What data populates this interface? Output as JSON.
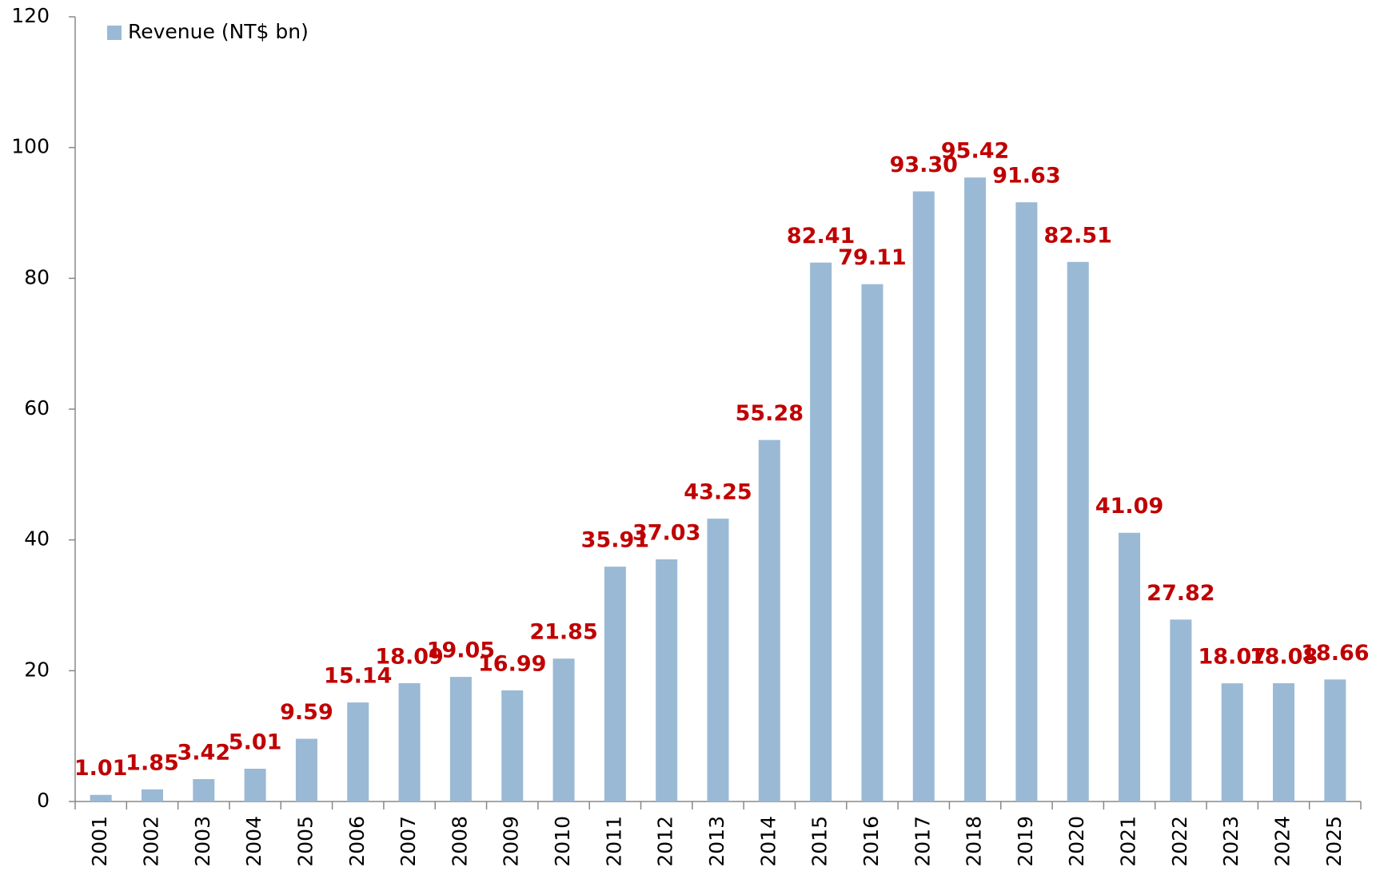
{
  "chart_data": {
    "type": "bar",
    "categories": [
      "2001",
      "2002",
      "2003",
      "2004",
      "2005",
      "2006",
      "2007",
      "2008",
      "2009",
      "2010",
      "2011",
      "2012",
      "2013",
      "2014",
      "2015",
      "2016",
      "2017",
      "2018",
      "2019",
      "2020",
      "2021",
      "2022",
      "2023",
      "2024",
      "2025"
    ],
    "series": [
      {
        "name": "Revenue (NT$ bn)",
        "color": "#9ab9d5",
        "values": [
          1.01,
          1.85,
          3.42,
          5.01,
          9.59,
          15.14,
          18.09,
          19.05,
          16.99,
          21.85,
          35.91,
          37.03,
          43.25,
          55.28,
          82.41,
          79.11,
          93.3,
          95.42,
          91.63,
          82.51,
          41.09,
          27.82,
          18.07,
          18.08,
          18.66
        ],
        "value_labels": [
          "1.01",
          "1.85",
          "3.42",
          "5.01",
          "9.59",
          "15.14",
          "18.09",
          "19.05",
          "16.99",
          "21.85",
          "35.91",
          "37.03",
          "43.25",
          "55.28",
          "82.41",
          "79.11",
          "93.30",
          "95.42",
          "91.63",
          "82.51",
          "41.09",
          "27.82",
          "18.07",
          "18.08",
          "18.66"
        ],
        "label_color": "#c00000"
      }
    ],
    "ylim": [
      0,
      120
    ],
    "yticks": [
      0,
      20,
      40,
      60,
      80,
      100,
      120
    ],
    "grid": false,
    "legend": "top-left"
  }
}
